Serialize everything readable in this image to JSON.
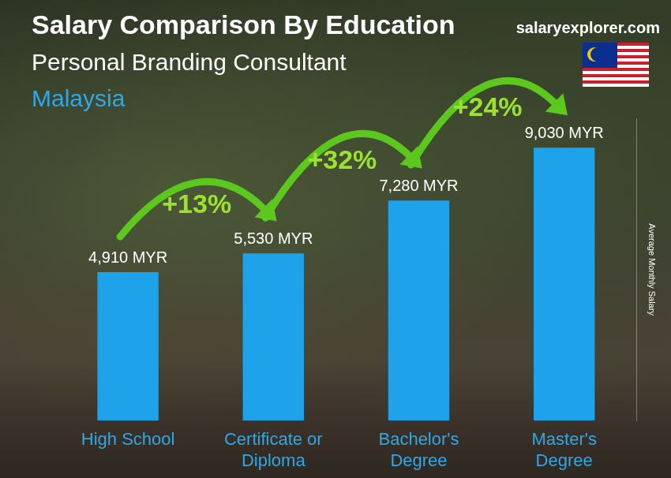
{
  "chart_data": {
    "type": "bar",
    "title": "Salary Comparison By Education",
    "subtitle": "Personal Branding Consultant",
    "location": "Malaysia",
    "source": "salaryexplorer.com",
    "y_label": "Average Monthly Salary",
    "categories": [
      "High School",
      "Certificate or Diploma",
      "Bachelor's Degree",
      "Master's Degree"
    ],
    "values": [
      4910,
      5530,
      7280,
      9030
    ],
    "value_labels": [
      "4,910 MYR",
      "5,530 MYR",
      "7,280 MYR",
      "9,030 MYR"
    ],
    "annotations": [
      "+13%",
      "+32%",
      "+24%"
    ],
    "color": "#1ea3ea",
    "ylim": [
      0,
      10000
    ],
    "grid": false,
    "data_labels": true,
    "tick_labels": "x"
  }
}
